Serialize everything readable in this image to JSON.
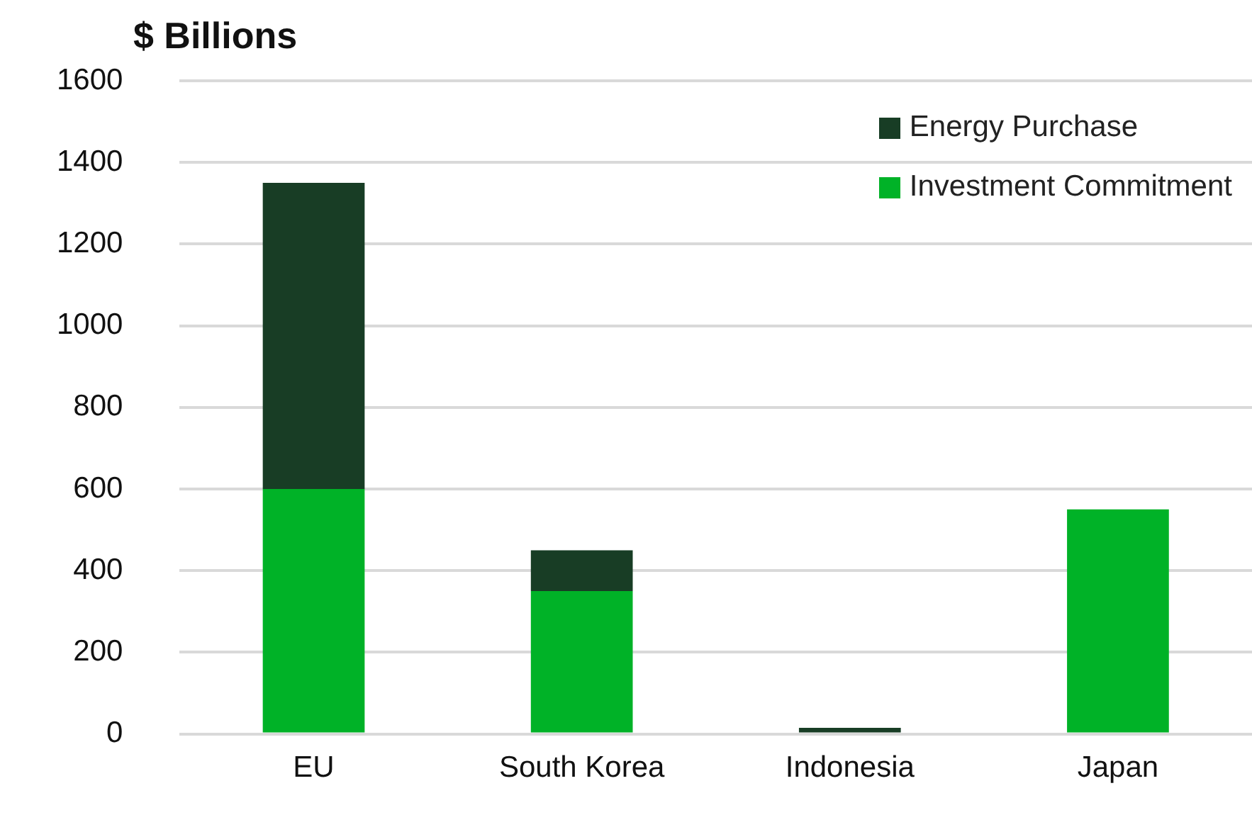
{
  "chart_data": {
    "type": "bar",
    "ylabel": "$ Billions",
    "categories": [
      "EU",
      "South Korea",
      "Indonesia",
      "Japan"
    ],
    "stacked": true,
    "series": [
      {
        "name": "Investment Commitment",
        "color": "#00b227",
        "values": [
          600,
          350,
          0,
          550
        ]
      },
      {
        "name": "Energy Purchase",
        "color": "#183d25",
        "values": [
          750,
          100,
          15,
          0
        ]
      }
    ],
    "ylim": [
      0,
      1600
    ],
    "yticks": [
      0,
      200,
      400,
      600,
      800,
      1000,
      1200,
      1400,
      1600
    ],
    "grid": "y",
    "legend": "top right"
  }
}
